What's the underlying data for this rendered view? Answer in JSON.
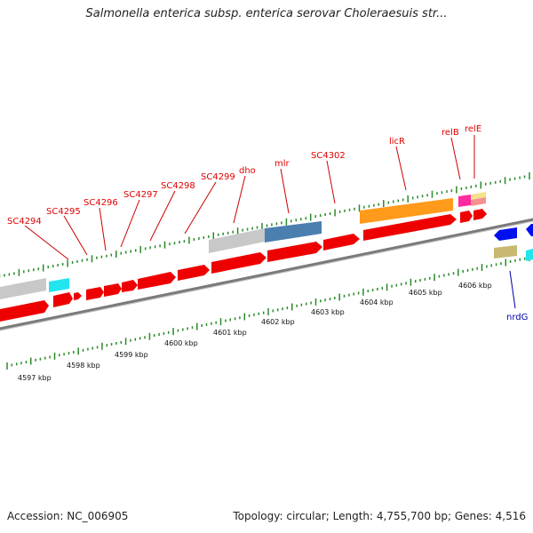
{
  "title": "Salmonella enterica subsp. enterica serovar Choleraesuis str...",
  "footer": {
    "accession": "Accession: NC_006905",
    "summary": "Topology: circular; Length: 4,755,700 bp; Genes: 4,516"
  },
  "colors": {
    "cds_forward": "#ee0000",
    "cds_reverse": "#0000ee",
    "backbone": "#888888",
    "tick": "#2a8a2a",
    "gene_label_forward": "#dd0000",
    "gene_label_reverse": "#0000aa"
  },
  "gene_labels": [
    {
      "text": "SC4294",
      "strand": "forward"
    },
    {
      "text": "SC4295",
      "strand": "forward"
    },
    {
      "text": "SC4296",
      "strand": "forward"
    },
    {
      "text": "SC4297",
      "strand": "forward"
    },
    {
      "text": "SC4298",
      "strand": "forward"
    },
    {
      "text": "SC4299",
      "strand": "forward"
    },
    {
      "text": "dho",
      "strand": "forward"
    },
    {
      "text": "mlr",
      "strand": "forward"
    },
    {
      "text": "SC4302",
      "strand": "forward"
    },
    {
      "text": "licR",
      "strand": "forward"
    },
    {
      "text": "relB",
      "strand": "forward"
    },
    {
      "text": "relE",
      "strand": "forward"
    },
    {
      "text": "nrdG",
      "strand": "reverse"
    }
  ],
  "kbp_labels": [
    "4597 kbp",
    "4598 kbp",
    "4599 kbp",
    "4600 kbp",
    "4601 kbp",
    "4602 kbp",
    "4603 kbp",
    "4604 kbp",
    "4605 kbp",
    "4606 kbp"
  ]
}
